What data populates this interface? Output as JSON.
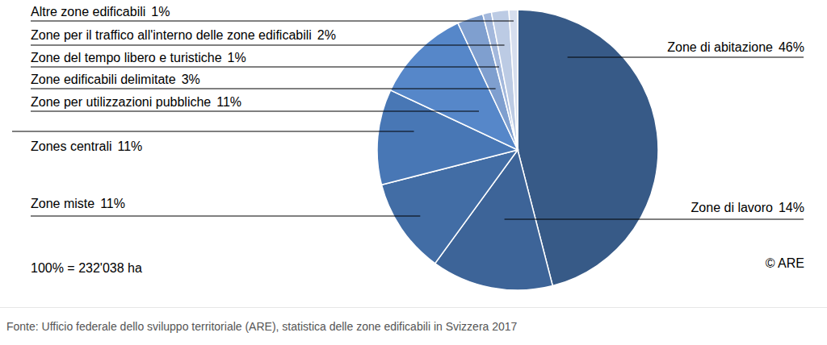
{
  "chart_data": {
    "type": "pie",
    "categories": [
      "Zone di abitazione",
      "Zone di lavoro",
      "Zone miste",
      "Zones centrali",
      "Zone per utilizzazioni pubbliche",
      "Zone edificabili delimitate",
      "Zone del tempo libero e turistiche",
      "Zone per il traffico all'interno delle zone edificabili",
      "Altre zone edificabili"
    ],
    "values": [
      46,
      14,
      11,
      11,
      11,
      3,
      1,
      2,
      1
    ],
    "value_labels": [
      "46%",
      "14%",
      "11%",
      "11%",
      "11%",
      "3%",
      "1%",
      "2%",
      "1%"
    ],
    "colors": [
      "#375a87",
      "#3d6498",
      "#426da5",
      "#4877b5",
      "#5687c9",
      "#7f9fcf",
      "#a3b8dc",
      "#bccbe4",
      "#d6deee"
    ],
    "data_labels": true,
    "annotations": [
      "100% = 232'038 ha",
      "© ARE",
      "Fonte: Ufficio federale dello sviluppo territoriale (ARE), statistica delle zone edificabili in Svizzera 2017"
    ]
  }
}
